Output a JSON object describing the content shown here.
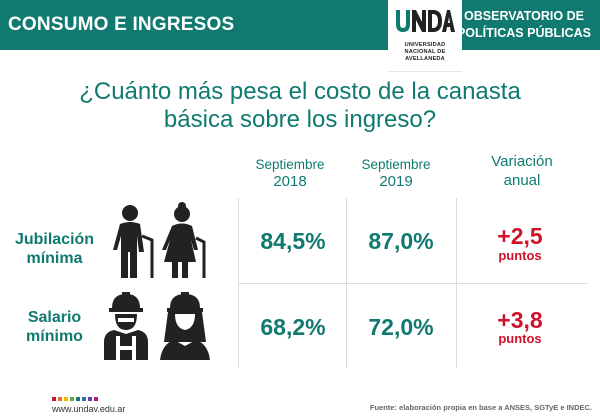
{
  "header": {
    "section_title": "CONSUMO E INGRESOS",
    "logo": {
      "line1": "UNIVERSIDAD",
      "line2": "NACIONAL DE",
      "line3": "AVELLANEDA"
    },
    "observatory_line1": "OBSERVATORIO DE",
    "observatory_line2": "POLÍTICAS PÚBLICAS",
    "accent_color": "#107a70"
  },
  "question": {
    "line1": "¿Cuánto más pesa el costo de la canasta",
    "line2": "básica sobre los ingreso?"
  },
  "columns": [
    {
      "line1": "Septiembre",
      "line2": "2018"
    },
    {
      "line1": "Septiembre",
      "line2": "2019"
    },
    {
      "line1": "Variación",
      "line2": "anual"
    }
  ],
  "rows": [
    {
      "label_line1": "Jubilación",
      "label_line2": "mínima",
      "icon": "elderly-couple-icon",
      "val2018": "84,5%",
      "val2019": "87,0%",
      "variation": "+2,5",
      "variation_unit": "puntos"
    },
    {
      "label_line1": "Salario",
      "label_line2": "mínimo",
      "icon": "workers-icon",
      "val2018": "68,2%",
      "val2019": "72,0%",
      "variation": "+3,8",
      "variation_unit": "puntos"
    }
  ],
  "footer": {
    "url": "www.undav.edu.ar",
    "source": "Fuente: elaboración propia en base a ANSES, SGTyE e INDEC.",
    "variation_color": "#d0112b"
  }
}
